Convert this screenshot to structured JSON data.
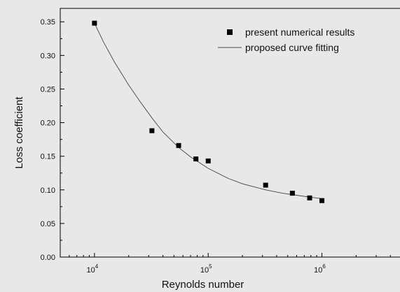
{
  "chart_data": {
    "type": "scatter",
    "xlabel": "Reynolds number",
    "ylabel": "Loss coefficient",
    "xscale": "log",
    "xlim": [
      5000,
      5000000
    ],
    "ylim": [
      0,
      0.37
    ],
    "x_ticks": [
      10000,
      100000,
      1000000
    ],
    "x_tick_labels": [
      {
        "base": "10",
        "exp": "4"
      },
      {
        "base": "10",
        "exp": "5"
      },
      {
        "base": "10",
        "exp": "6"
      }
    ],
    "y_ticks": [
      0.0,
      0.05,
      0.1,
      0.15,
      0.2,
      0.25,
      0.3,
      0.35
    ],
    "y_tick_labels": [
      "0.00",
      "0.05",
      "0.10",
      "0.15",
      "0.20",
      "0.25",
      "0.30",
      "0.35"
    ],
    "grid": false,
    "legend_position": "top-right",
    "series": [
      {
        "name": "present numerical results",
        "kind": "scatter",
        "marker": "square",
        "color": "#000000",
        "x": [
          10000,
          32000,
          55000,
          78000,
          100000,
          320000,
          550000,
          780000,
          1000000
        ],
        "y": [
          0.348,
          0.188,
          0.166,
          0.146,
          0.143,
          0.107,
          0.095,
          0.088,
          0.084
        ]
      },
      {
        "name": "proposed curve fitting",
        "kind": "line",
        "color": "#444444",
        "x": [
          10000,
          12000,
          15000,
          20000,
          25000,
          32000,
          40000,
          55000,
          70000,
          100000,
          150000,
          200000,
          320000,
          450000,
          600000,
          800000,
          1000000
        ],
        "y": [
          0.348,
          0.32,
          0.29,
          0.256,
          0.232,
          0.207,
          0.186,
          0.163,
          0.149,
          0.132,
          0.117,
          0.109,
          0.1,
          0.095,
          0.092,
          0.089,
          0.087
        ]
      }
    ]
  }
}
